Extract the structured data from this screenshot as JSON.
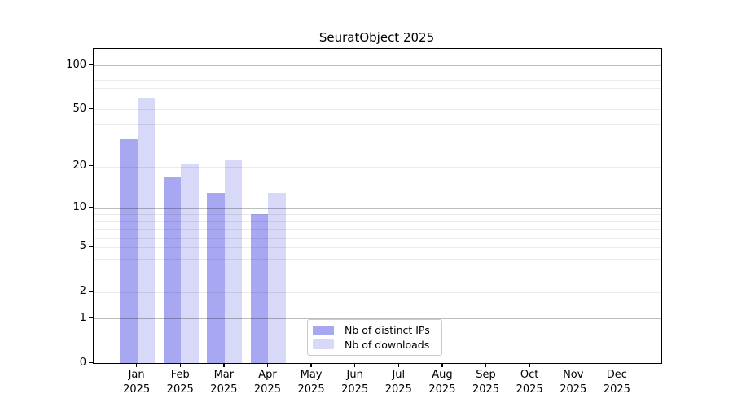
{
  "figure": {
    "title": "SeuratObject 2025"
  },
  "chart_data": {
    "type": "bar",
    "title": "SeuratObject 2025",
    "xlabel": "",
    "ylabel": "",
    "categories": [
      "Jan",
      "Feb",
      "Mar",
      "Apr",
      "May",
      "Jun",
      "Jul",
      "Aug",
      "Sep",
      "Oct",
      "Nov",
      "Dec"
    ],
    "category_year": "2025",
    "series": [
      {
        "name": "Nb of distinct IPs",
        "color": "#a8a8f2",
        "values": [
          31,
          17,
          13,
          9,
          0,
          0,
          0,
          0,
          0,
          0,
          0,
          0
        ]
      },
      {
        "name": "Nb of downloads",
        "color": "#d8d8f8",
        "values": [
          59,
          21,
          22,
          13,
          0,
          0,
          0,
          0,
          0,
          0,
          0,
          0
        ]
      }
    ],
    "y_axis": {
      "scale": "log1p",
      "tick_values": [
        0,
        1,
        2,
        5,
        10,
        20,
        50,
        100
      ],
      "major_gridlines": [
        1,
        10,
        100
      ],
      "minor_gridlines": [
        2,
        3,
        4,
        5,
        6,
        7,
        8,
        9,
        20,
        30,
        40,
        50,
        60,
        70,
        80,
        90
      ],
      "range": [
        0,
        129
      ]
    },
    "grid": "on",
    "legend_position": "bottom-center"
  },
  "legend": {
    "entries": [
      {
        "label": "Nb of distinct IPs",
        "color": "#a8a8f2"
      },
      {
        "label": "Nb of downloads",
        "color": "#d8d8f8"
      }
    ]
  }
}
